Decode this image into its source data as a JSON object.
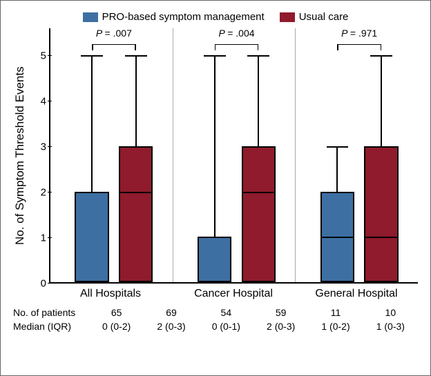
{
  "legend": {
    "series": [
      {
        "label": "PRO-based symptom management",
        "color": "#3d6fa3"
      },
      {
        "label": "Usual care",
        "color": "#8f1b2c"
      }
    ]
  },
  "y_axis": {
    "label": "No. of Symptom Threshold Events",
    "min": 0,
    "max": 5.6,
    "ticks": [
      0,
      1,
      2,
      3,
      4,
      5
    ]
  },
  "panels": [
    {
      "label": "All Hospitals",
      "pvalue": "P = .007",
      "boxes": [
        {
          "series": 0,
          "q1": 0,
          "median": 0,
          "q3": 2,
          "whisker_hi": 5
        },
        {
          "series": 1,
          "q1": 0,
          "median": 2,
          "q3": 3,
          "whisker_hi": 5
        }
      ],
      "n": [
        "65",
        "69"
      ],
      "median_iqr": [
        "0 (0-2)",
        "2 (0-3)"
      ]
    },
    {
      "label": "Cancer Hospital",
      "pvalue": "P = .004",
      "boxes": [
        {
          "series": 0,
          "q1": 0,
          "median": 0,
          "q3": 1,
          "whisker_hi": 5
        },
        {
          "series": 1,
          "q1": 0,
          "median": 2,
          "q3": 3,
          "whisker_hi": 5
        }
      ],
      "n": [
        "54",
        "59"
      ],
      "median_iqr": [
        "0 (0-1)",
        "2 (0-3)"
      ]
    },
    {
      "label": "General Hospital",
      "pvalue": "P = .971",
      "boxes": [
        {
          "series": 0,
          "q1": 0,
          "median": 1,
          "q3": 2,
          "whisker_hi": 3
        },
        {
          "series": 1,
          "q1": 0,
          "median": 1,
          "q3": 3,
          "whisker_hi": 5
        }
      ],
      "n": [
        "11",
        "10"
      ],
      "median_iqr": [
        "1 (0-2)",
        "1 (0-3)"
      ]
    }
  ],
  "table_heads": {
    "n": "No. of patients",
    "miqr": "Median (IQR)"
  },
  "layout": {
    "box_width_pct": 28,
    "box_positions_pct": [
      20,
      56
    ],
    "cap_width_pct": 18,
    "bracket_top_val": 5.25,
    "pval_top_val": 5.5
  }
}
